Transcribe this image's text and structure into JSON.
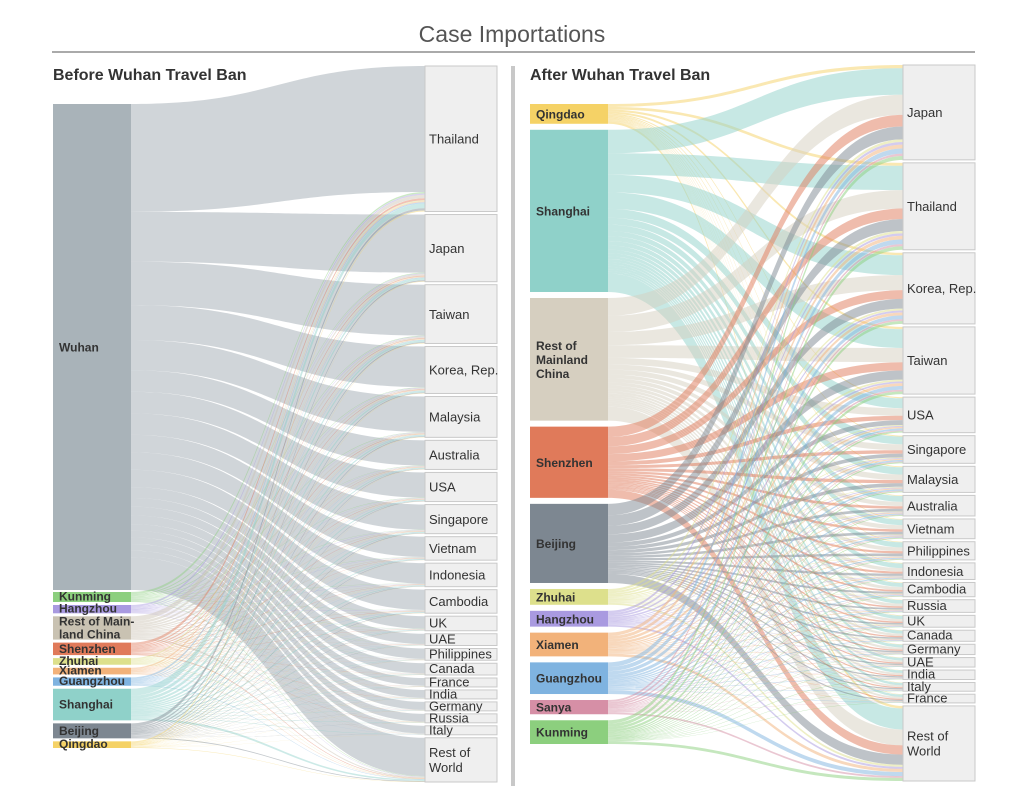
{
  "chart_data": {
    "type": "sankey",
    "title": "Case Importations",
    "panels": [
      {
        "heading": "Before Wuhan Travel Ban",
        "sources": [
          {
            "name": "Wuhan",
            "value": 100,
            "color": "#a9b3b9"
          },
          {
            "name": "Kunming",
            "value": 1.2,
            "color": "#8ccf7e"
          },
          {
            "name": "Hangzhou",
            "value": 1.0,
            "color": "#a99ae0"
          },
          {
            "name": "Rest of Main-land China",
            "value": 2.8,
            "color": "#c9c2b2"
          },
          {
            "name": "Shenzhen",
            "value": 1.5,
            "color": "#e07a5a"
          },
          {
            "name": "Zhuhai",
            "value": 0.8,
            "color": "#dde08c"
          },
          {
            "name": "Xiamen",
            "value": 0.8,
            "color": "#f2b27a"
          },
          {
            "name": "Guangzhou",
            "value": 1.0,
            "color": "#7fb3e0"
          },
          {
            "name": "Shanghai",
            "value": 3.8,
            "color": "#8fd1c9"
          },
          {
            "name": "Beijing",
            "value": 1.8,
            "color": "#7d8791"
          },
          {
            "name": "Qingdao",
            "value": 0.8,
            "color": "#f5d266"
          }
        ],
        "destinations": [
          {
            "name": "Thailand",
            "value": 26
          },
          {
            "name": "Japan",
            "value": 12
          },
          {
            "name": "Taiwan",
            "value": 10.5
          },
          {
            "name": "Korea, Rep.",
            "value": 8.4
          },
          {
            "name": "Malaysia",
            "value": 7.3
          },
          {
            "name": "Australia",
            "value": 5.2
          },
          {
            "name": "USA",
            "value": 5.2
          },
          {
            "name": "Singapore",
            "value": 5.2
          },
          {
            "name": "Vietnam",
            "value": 4.2
          },
          {
            "name": "Indonesia",
            "value": 4.2
          },
          {
            "name": "Cambodia",
            "value": 4.2
          },
          {
            "name": "UK",
            "value": 2.6
          },
          {
            "name": "UAE",
            "value": 2.1
          },
          {
            "name": "Philippines",
            "value": 2.1
          },
          {
            "name": "Canada",
            "value": 2.1
          },
          {
            "name": "France",
            "value": 1.6
          },
          {
            "name": "India",
            "value": 1.6
          },
          {
            "name": "Germany",
            "value": 1.6
          },
          {
            "name": "Russia",
            "value": 1.6
          },
          {
            "name": "Italy",
            "value": 1.6
          },
          {
            "name": "Rest of World",
            "value": 7.9
          }
        ]
      },
      {
        "heading": "After Wuhan Travel Ban",
        "sources": [
          {
            "name": "Qingdao",
            "value": 2.5,
            "color": "#f5d266"
          },
          {
            "name": "Shanghai",
            "value": 20.5,
            "color": "#8fd1c9"
          },
          {
            "name": "Rest of Mainland China",
            "value": 15.5,
            "color": "#d6cfc0"
          },
          {
            "name": "Shenzhen",
            "value": 9.0,
            "color": "#e07a5a"
          },
          {
            "name": "Beijing",
            "value": 10.0,
            "color": "#7d8791"
          },
          {
            "name": "Zhuhai",
            "value": 2.0,
            "color": "#dde08c"
          },
          {
            "name": "Hangzhou",
            "value": 2.0,
            "color": "#a99ae0"
          },
          {
            "name": "Xiamen",
            "value": 3.0,
            "color": "#f2b27a"
          },
          {
            "name": "Guangzhou",
            "value": 4.0,
            "color": "#7fb3e0"
          },
          {
            "name": "Sanya",
            "value": 1.8,
            "color": "#d68fa6"
          },
          {
            "name": "Kunming",
            "value": 3.0,
            "color": "#8ccf7e"
          }
        ],
        "destinations": [
          {
            "name": "Japan",
            "value": 12
          },
          {
            "name": "Thailand",
            "value": 11
          },
          {
            "name": "Korea, Rep.",
            "value": 9
          },
          {
            "name": "Taiwan",
            "value": 8.5
          },
          {
            "name": "USA",
            "value": 4.5
          },
          {
            "name": "Singapore",
            "value": 3.5
          },
          {
            "name": "Malaysia",
            "value": 3.3
          },
          {
            "name": "Australia",
            "value": 2.6
          },
          {
            "name": "Vietnam",
            "value": 2.5
          },
          {
            "name": "Philippines",
            "value": 2.3
          },
          {
            "name": "Indonesia",
            "value": 2.1
          },
          {
            "name": "Cambodia",
            "value": 1.8
          },
          {
            "name": "Russia",
            "value": 1.6
          },
          {
            "name": "UK",
            "value": 1.5
          },
          {
            "name": "Canada",
            "value": 1.4
          },
          {
            "name": "Germany",
            "value": 1.3
          },
          {
            "name": "UAE",
            "value": 1.2
          },
          {
            "name": "India",
            "value": 1.2
          },
          {
            "name": "Italy",
            "value": 1.1
          },
          {
            "name": "France",
            "value": 1.1
          },
          {
            "name": "Rest of World",
            "value": 9.5
          }
        ]
      }
    ]
  }
}
